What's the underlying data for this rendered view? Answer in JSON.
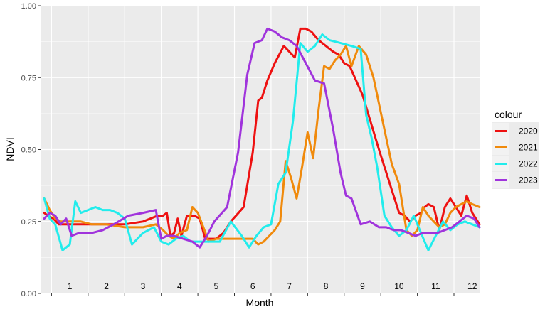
{
  "chart_data": {
    "type": "line",
    "title": "",
    "xlabel": "Month",
    "ylabel": "NDVI",
    "ylim": [
      0.0,
      1.0
    ],
    "y_ticks": [
      "0.00",
      "0.25",
      "0.50",
      "0.75",
      "1.00"
    ],
    "x_range": [
      0.2,
      12.2
    ],
    "month_labels": [
      "1",
      "2",
      "3",
      "4",
      "5",
      "6",
      "7",
      "8",
      "9",
      "10",
      "11",
      "12"
    ],
    "grid": true,
    "legend": {
      "title": "colour",
      "position": "right"
    },
    "series": [
      {
        "name": "2020",
        "color": "#ee1111",
        "x": [
          0.3,
          0.4,
          0.55,
          0.7,
          0.85,
          1.0,
          1.2,
          1.5,
          2.0,
          2.5,
          3.0,
          3.4,
          3.55,
          3.65,
          3.75,
          3.85,
          3.95,
          4.05,
          4.2,
          4.4,
          4.55,
          4.7,
          4.85,
          5.0,
          5.2,
          5.4,
          5.75,
          6.0,
          6.15,
          6.25,
          6.4,
          6.6,
          6.85,
          7.0,
          7.15,
          7.3,
          7.45,
          7.6,
          7.8,
          8.0,
          8.2,
          8.35,
          8.5,
          8.65,
          9.0,
          9.45,
          9.75,
          10.0,
          10.15,
          10.3,
          10.45,
          10.6,
          10.7,
          10.8,
          10.95,
          11.1,
          11.25,
          11.4,
          11.55,
          11.7,
          11.85,
          12.0,
          12.2
        ],
        "y": [
          0.28,
          0.27,
          0.26,
          0.24,
          0.24,
          0.24,
          0.24,
          0.24,
          0.24,
          0.24,
          0.25,
          0.27,
          0.27,
          0.28,
          0.2,
          0.21,
          0.26,
          0.2,
          0.27,
          0.27,
          0.26,
          0.19,
          0.19,
          0.19,
          0.21,
          0.25,
          0.3,
          0.49,
          0.67,
          0.68,
          0.74,
          0.8,
          0.86,
          0.84,
          0.82,
          0.92,
          0.92,
          0.91,
          0.88,
          0.86,
          0.84,
          0.83,
          0.8,
          0.79,
          0.69,
          0.5,
          0.38,
          0.28,
          0.27,
          0.25,
          0.27,
          0.28,
          0.3,
          0.31,
          0.3,
          0.22,
          0.3,
          0.33,
          0.3,
          0.27,
          0.34,
          0.28,
          0.24
        ]
      },
      {
        "name": "2021",
        "color": "#f08a0c",
        "x": [
          0.3,
          0.45,
          0.6,
          0.75,
          0.9,
          1.05,
          1.3,
          1.6,
          2.0,
          2.5,
          3.0,
          3.35,
          3.55,
          3.7,
          3.85,
          4.0,
          4.2,
          4.35,
          4.5,
          4.65,
          4.8,
          5.0,
          5.3,
          5.7,
          6.0,
          6.15,
          6.3,
          6.45,
          6.6,
          6.75,
          6.9,
          7.05,
          7.2,
          7.35,
          7.5,
          7.65,
          7.8,
          7.95,
          8.1,
          8.25,
          8.4,
          8.55,
          8.7,
          8.9,
          9.1,
          9.3,
          9.55,
          9.8,
          10.0,
          10.2,
          10.35,
          10.5,
          10.65,
          10.8,
          10.95,
          11.1,
          11.25,
          11.4,
          11.55,
          11.7,
          11.85,
          12.0,
          12.2
        ],
        "y": [
          0.33,
          0.29,
          0.26,
          0.25,
          0.25,
          0.25,
          0.25,
          0.24,
          0.24,
          0.23,
          0.23,
          0.24,
          0.22,
          0.2,
          0.19,
          0.21,
          0.22,
          0.3,
          0.28,
          0.23,
          0.18,
          0.19,
          0.19,
          0.19,
          0.19,
          0.17,
          0.18,
          0.2,
          0.22,
          0.25,
          0.46,
          0.4,
          0.33,
          0.44,
          0.56,
          0.47,
          0.64,
          0.79,
          0.78,
          0.81,
          0.83,
          0.86,
          0.79,
          0.86,
          0.83,
          0.75,
          0.6,
          0.45,
          0.38,
          0.22,
          0.2,
          0.22,
          0.3,
          0.27,
          0.25,
          0.23,
          0.24,
          0.28,
          0.3,
          0.31,
          0.32,
          0.31,
          0.3
        ]
      },
      {
        "name": "2022",
        "color": "#22ecec",
        "x": [
          0.3,
          0.45,
          0.6,
          0.8,
          1.0,
          1.15,
          1.3,
          1.5,
          1.7,
          1.9,
          2.1,
          2.3,
          2.5,
          2.7,
          3.0,
          3.3,
          3.5,
          3.7,
          3.9,
          4.1,
          4.3,
          4.5,
          4.7,
          4.9,
          5.1,
          5.4,
          5.7,
          5.9,
          6.1,
          6.3,
          6.5,
          6.7,
          6.9,
          7.1,
          7.3,
          7.5,
          7.7,
          7.9,
          8.1,
          8.4,
          8.7,
          8.95,
          9.1,
          9.25,
          9.4,
          9.6,
          9.8,
          10.0,
          10.2,
          10.4,
          10.6,
          10.8,
          11.0,
          11.2,
          11.4,
          11.6,
          11.8,
          12.0,
          12.2
        ],
        "y": [
          0.33,
          0.26,
          0.24,
          0.15,
          0.17,
          0.32,
          0.28,
          0.29,
          0.3,
          0.29,
          0.29,
          0.28,
          0.26,
          0.17,
          0.21,
          0.23,
          0.18,
          0.17,
          0.19,
          0.2,
          0.18,
          0.18,
          0.18,
          0.18,
          0.18,
          0.25,
          0.2,
          0.16,
          0.2,
          0.23,
          0.24,
          0.38,
          0.42,
          0.6,
          0.87,
          0.84,
          0.86,
          0.9,
          0.88,
          0.87,
          0.86,
          0.85,
          0.62,
          0.54,
          0.44,
          0.27,
          0.23,
          0.2,
          0.22,
          0.27,
          0.21,
          0.15,
          0.2,
          0.25,
          0.22,
          0.24,
          0.25,
          0.24,
          0.23
        ]
      },
      {
        "name": "2023",
        "color": "#a034dc",
        "x": [
          0.3,
          0.45,
          0.6,
          0.75,
          0.9,
          1.05,
          1.25,
          1.6,
          1.9,
          2.2,
          2.6,
          3.0,
          3.35,
          3.5,
          3.65,
          3.85,
          4.1,
          4.35,
          4.55,
          4.75,
          4.95,
          5.3,
          5.6,
          5.85,
          6.05,
          6.25,
          6.4,
          6.6,
          6.8,
          7.0,
          7.2,
          7.45,
          7.7,
          7.95,
          8.2,
          8.4,
          8.55,
          8.7,
          8.95,
          9.2,
          9.45,
          9.65,
          9.85,
          10.05,
          10.25,
          10.45,
          10.65,
          10.85,
          11.05,
          11.25,
          11.45,
          11.65,
          11.85,
          12.05,
          12.2
        ],
        "y": [
          0.26,
          0.28,
          0.27,
          0.24,
          0.26,
          0.2,
          0.21,
          0.21,
          0.22,
          0.24,
          0.27,
          0.28,
          0.29,
          0.19,
          0.2,
          0.2,
          0.19,
          0.18,
          0.16,
          0.2,
          0.25,
          0.3,
          0.49,
          0.76,
          0.87,
          0.88,
          0.92,
          0.91,
          0.89,
          0.88,
          0.86,
          0.8,
          0.74,
          0.73,
          0.57,
          0.42,
          0.34,
          0.33,
          0.24,
          0.25,
          0.23,
          0.23,
          0.22,
          0.22,
          0.21,
          0.2,
          0.21,
          0.21,
          0.21,
          0.22,
          0.23,
          0.25,
          0.27,
          0.26,
          0.23
        ]
      }
    ]
  }
}
